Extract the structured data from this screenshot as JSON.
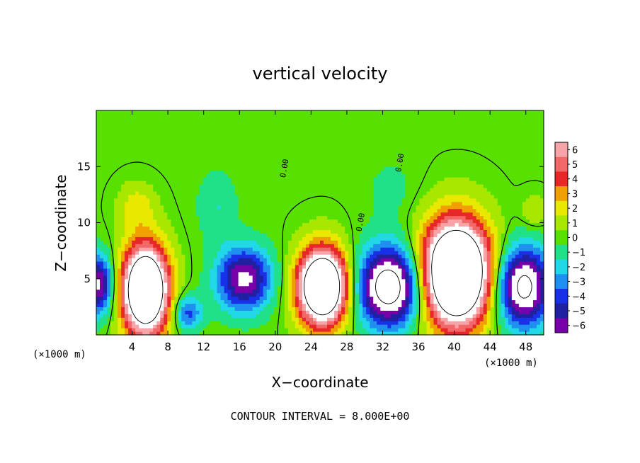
{
  "chart_data": {
    "type": "heatmap",
    "title": "vertical velocity",
    "xlabel": "X−coordinate",
    "ylabel": "Z−coordinate",
    "x_unit": "(×1000 m)",
    "y_unit": "(×1000 m)",
    "xlim": [
      0,
      50
    ],
    "ylim": [
      0,
      20
    ],
    "x_ticks": [
      4,
      8,
      12,
      16,
      20,
      24,
      28,
      32,
      36,
      40,
      44,
      48
    ],
    "y_ticks": [
      5,
      10,
      15
    ],
    "colorbar": {
      "levels": [
        6,
        5,
        4,
        3,
        2,
        1,
        0,
        -1,
        -2,
        -3,
        -4,
        -5,
        -6
      ],
      "level_labels": [
        "6",
        "5",
        "4",
        "3",
        "2",
        "1",
        "0",
        "−1",
        "−2",
        "−3",
        "−4",
        "−5",
        "−6"
      ],
      "colors": [
        "#f6a4a8",
        "#f06868",
        "#e82828",
        "#f0a000",
        "#e8e800",
        "#a8e800",
        "#58e000",
        "#20e088",
        "#20d8e8",
        "#2090f0",
        "#1830e8",
        "#2020a0",
        "#7800a8"
      ]
    },
    "contour_label": "0.00",
    "contour_interval_text": "CONTOUR INTERVAL = 8.000E+00",
    "features": [
      {
        "kind": "updraft",
        "x": 5.5,
        "z": 4.0,
        "rx": 2.6,
        "rz": 4.0,
        "peak": 14
      },
      {
        "kind": "downdraft",
        "x": 0.3,
        "z": 4.5,
        "rx": 1.6,
        "rz": 2.6,
        "peak": -7
      },
      {
        "kind": "downdraft",
        "x": 10.2,
        "z": 2.0,
        "rx": 1.6,
        "rz": 1.6,
        "peak": -4
      },
      {
        "kind": "downdraft",
        "x": 16.5,
        "z": 5.0,
        "rx": 3.0,
        "rz": 2.8,
        "peak": -7
      },
      {
        "kind": "updraft",
        "x": 25.3,
        "z": 4.3,
        "rx": 2.8,
        "rz": 3.4,
        "peak": 14
      },
      {
        "kind": "downdraft",
        "x": 32.8,
        "z": 4.3,
        "rx": 3.6,
        "rz": 3.5,
        "peak": -10
      },
      {
        "kind": "updraft",
        "x": 40.2,
        "z": 5.5,
        "rx": 3.8,
        "rz": 4.6,
        "peak": 16
      },
      {
        "kind": "downdraft",
        "x": 47.7,
        "z": 4.3,
        "rx": 3.0,
        "rz": 3.5,
        "peak": -9
      },
      {
        "kind": "weak_updraft",
        "x": 4.5,
        "z": 11.5,
        "rx": 2.0,
        "rz": 2.0,
        "peak": 2
      },
      {
        "kind": "weak_updraft",
        "x": 49.0,
        "z": 11.0,
        "rx": 1.5,
        "rz": 1.5,
        "peak": 1.5
      },
      {
        "kind": "weak_downdraft",
        "x": 13.5,
        "z": 11.5,
        "rx": 2.2,
        "rz": 3.0,
        "peak": -1.5
      },
      {
        "kind": "weak_downdraft",
        "x": 33.0,
        "z": 13.0,
        "rx": 3.0,
        "rz": 3.0,
        "peak": -0.8
      }
    ]
  }
}
